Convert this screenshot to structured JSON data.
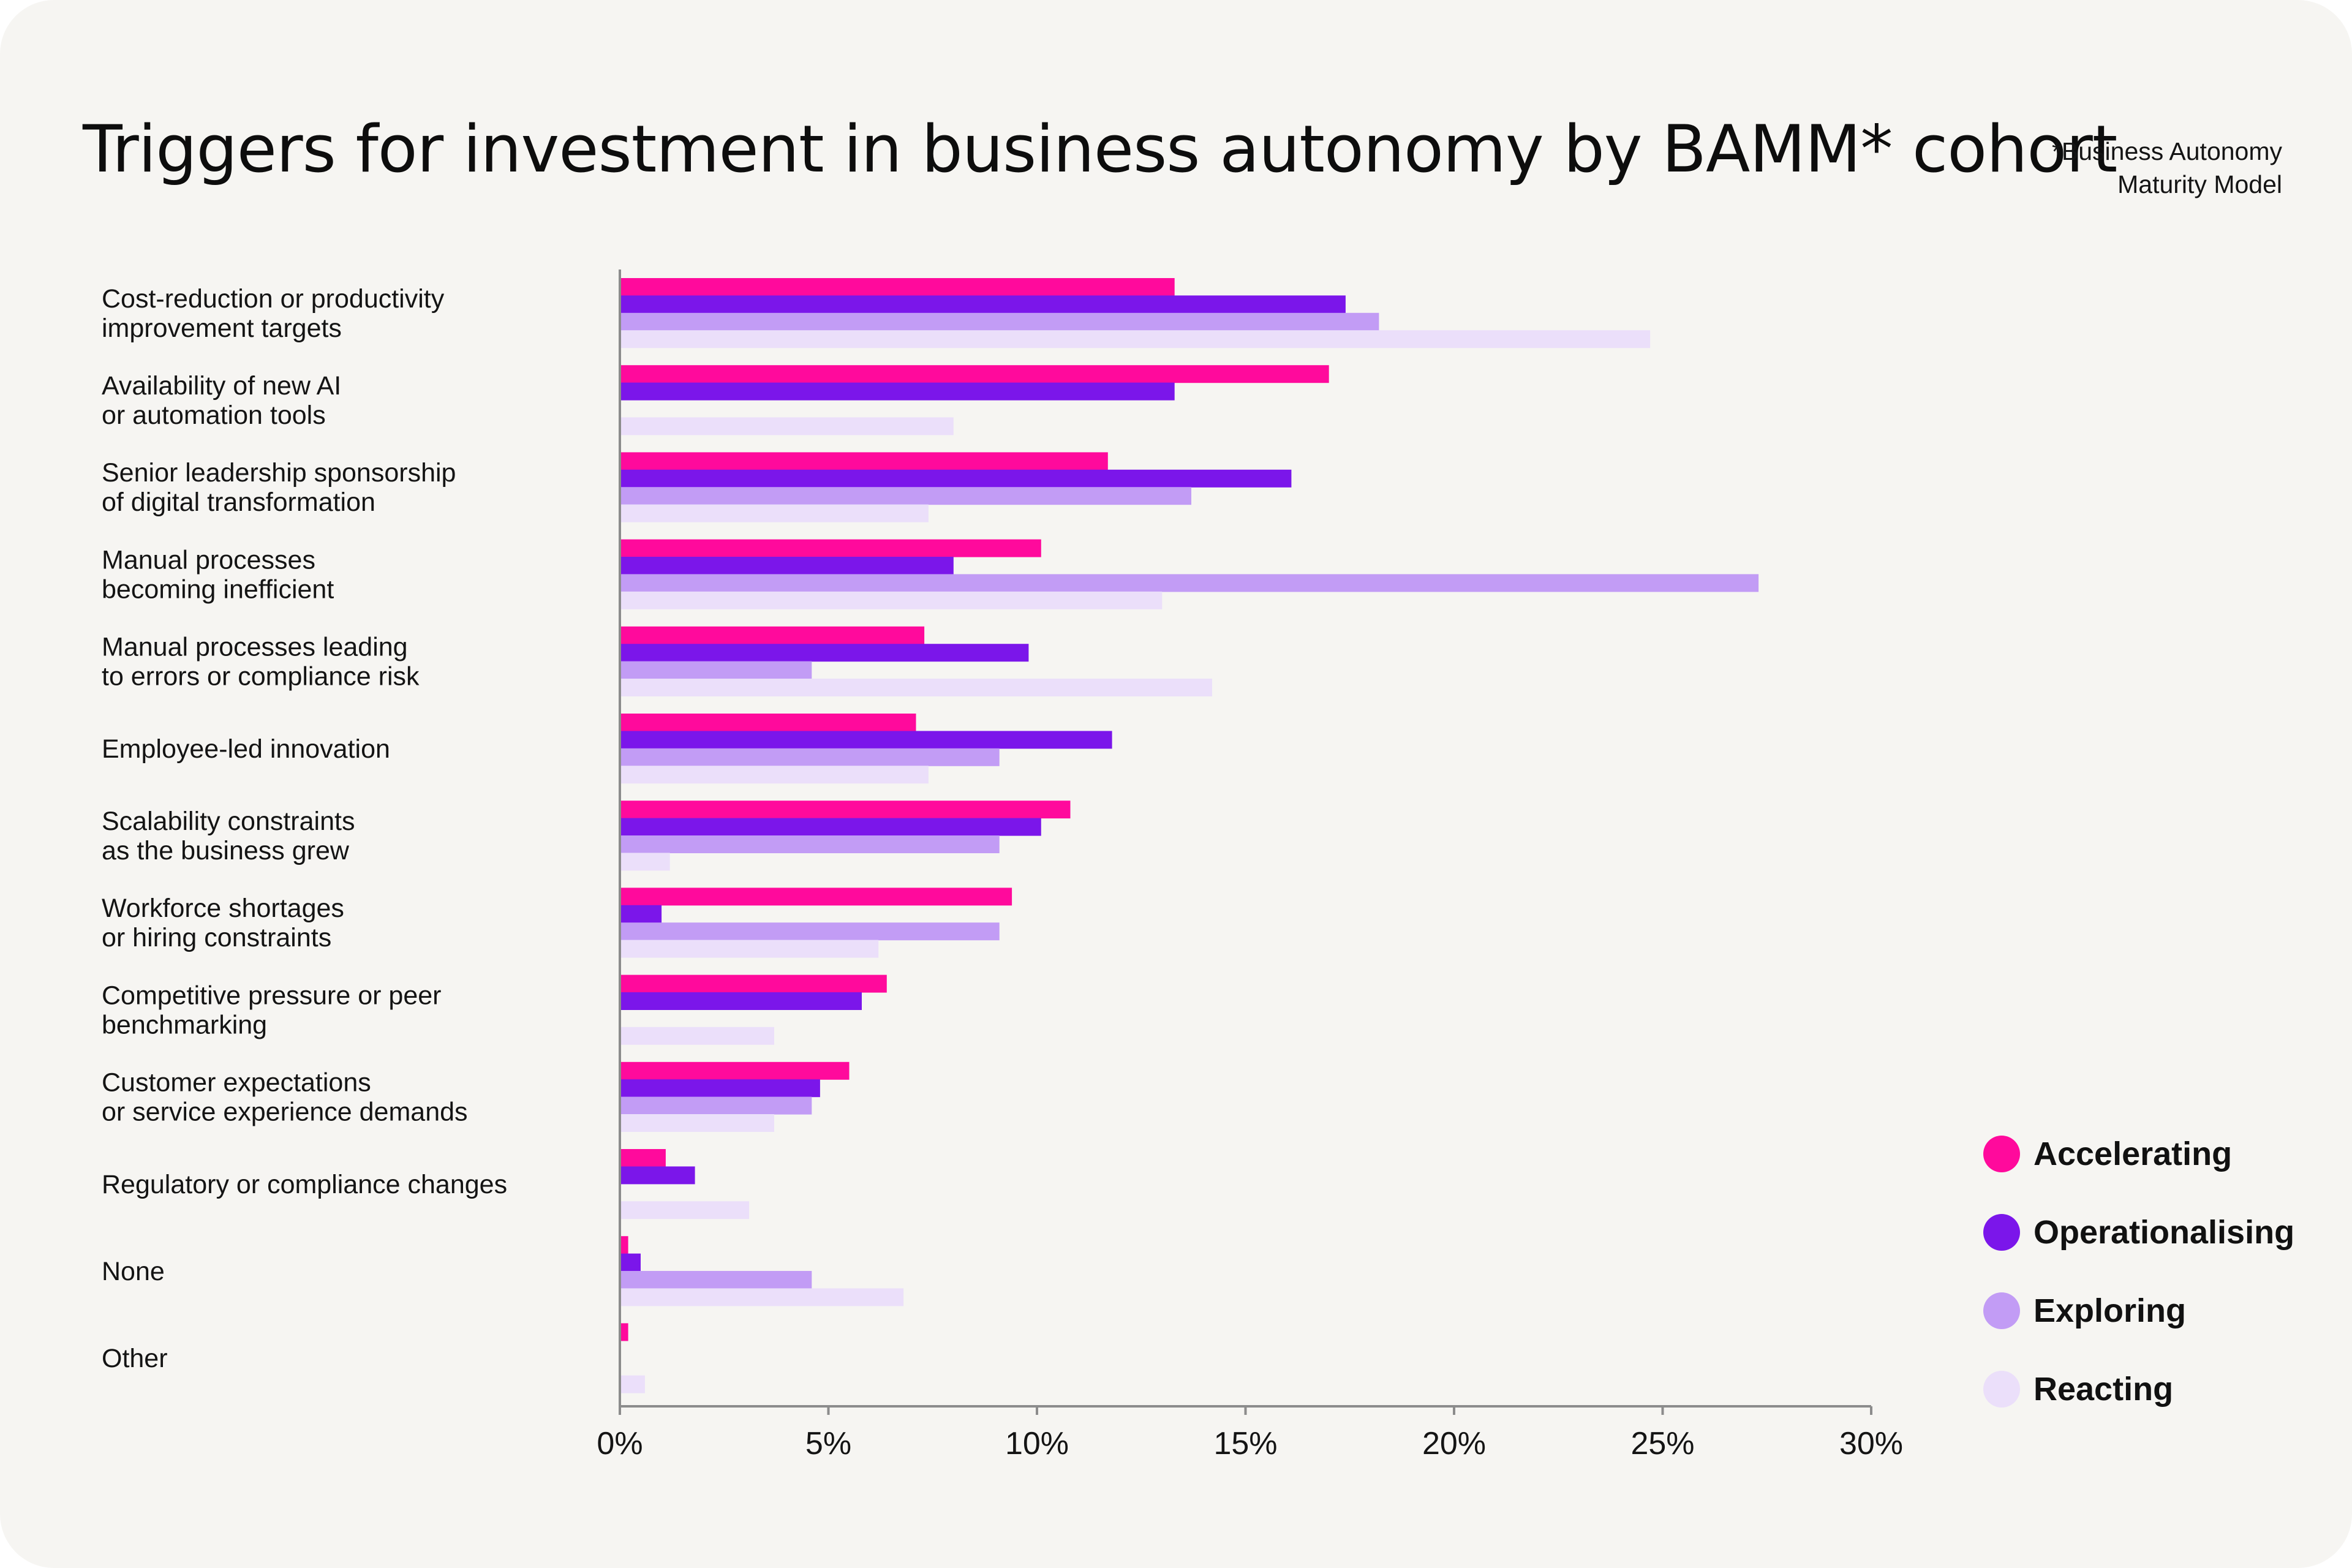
{
  "header": {
    "title": "Triggers for investment in business autonomy by BAMM* cohort",
    "footnote_line1": "*Business Autonomy",
    "footnote_line2": "Maturity Model"
  },
  "colors": {
    "Accelerating": "#ff0a9c",
    "Operationalising": "#7b16ea",
    "Exploring": "#c29cf5",
    "Reacting": "#ebdffa",
    "axis": "#8c8c8c",
    "background": "#f6f5f2"
  },
  "chart_data": {
    "type": "bar",
    "orientation": "horizontal",
    "categories": [
      [
        "Cost-reduction or productivity",
        "improvement targets"
      ],
      [
        "Availability of new AI",
        "or automation tools"
      ],
      [
        "Senior leadership sponsorship",
        "of digital transformation"
      ],
      [
        "Manual processes",
        "becoming inefficient"
      ],
      [
        "Manual processes leading",
        "to errors or compliance risk"
      ],
      [
        "Employee-led innovation"
      ],
      [
        "Scalability constraints",
        "as the business grew"
      ],
      [
        "Workforce shortages",
        "or hiring constraints"
      ],
      [
        "Competitive pressure or peer",
        "benchmarking"
      ],
      [
        "Customer expectations",
        "or service experience demands"
      ],
      [
        "Regulatory or compliance changes"
      ],
      [
        "None"
      ],
      [
        "Other"
      ]
    ],
    "series": [
      {
        "name": "Accelerating",
        "values": [
          13.3,
          17.0,
          11.7,
          10.1,
          7.3,
          7.1,
          10.8,
          9.4,
          6.4,
          5.5,
          1.1,
          0.2,
          0.2
        ]
      },
      {
        "name": "Operationalising",
        "values": [
          17.4,
          13.3,
          16.1,
          8.0,
          9.8,
          11.8,
          10.1,
          1.0,
          5.8,
          4.8,
          1.8,
          0.5,
          0
        ]
      },
      {
        "name": "Exploring",
        "values": [
          18.2,
          0,
          13.7,
          27.3,
          4.6,
          9.1,
          9.1,
          9.1,
          0,
          4.6,
          0,
          4.6,
          0
        ]
      },
      {
        "name": "Reacting",
        "values": [
          24.7,
          8.0,
          7.4,
          13.0,
          14.2,
          7.4,
          1.2,
          6.2,
          3.7,
          3.7,
          3.1,
          6.8,
          0.6
        ]
      }
    ],
    "xlim": [
      0,
      30
    ],
    "xticks": [
      "0%",
      "5%",
      "10%",
      "15%",
      "20%",
      "25%",
      "30%"
    ],
    "grid": false,
    "legend_position": "right"
  }
}
